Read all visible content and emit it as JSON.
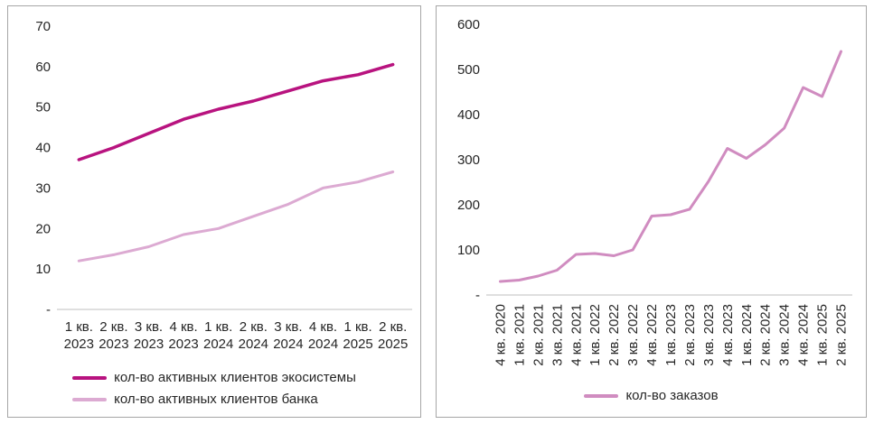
{
  "accent_colors": {
    "ecosystem_line": "#b8137f",
    "bank_line": "#dcaad2",
    "orders_line": "#d08cc0",
    "axis_line": "#bfbfbf"
  },
  "chart_data": [
    {
      "type": "line",
      "title": "",
      "xlabel": "",
      "ylabel": "",
      "ylim": [
        0,
        70
      ],
      "grid": false,
      "legend_position": "bottom",
      "ytick_values": [
        0,
        10,
        20,
        30,
        40,
        50,
        60,
        70
      ],
      "ytick_labels": [
        "-",
        "10",
        "20",
        "30",
        "40",
        "50",
        "60",
        "70"
      ],
      "categories": [
        "1 кв. 2023",
        "2 кв. 2023",
        "3 кв. 2023",
        "4 кв. 2023",
        "1 кв. 2024",
        "2 кв. 2024",
        "3 кв. 2024",
        "4 кв. 2024",
        "1 кв. 2025",
        "2 кв. 2025"
      ],
      "series": [
        {
          "name": "кол-во активных клиентов экосистемы",
          "color": "#b8137f",
          "width": 3.5,
          "values": [
            37,
            40,
            43.5,
            47,
            49.5,
            51.5,
            54,
            56.5,
            58,
            60.5
          ]
        },
        {
          "name": "кол-во активных клиентов банка",
          "color": "#dcaad2",
          "width": 3,
          "values": [
            12,
            13.5,
            15.5,
            18.5,
            20,
            23,
            26,
            30,
            31.5,
            34
          ]
        }
      ]
    },
    {
      "type": "line",
      "title": "",
      "xlabel": "",
      "ylabel": "",
      "ylim": [
        0,
        600
      ],
      "grid": false,
      "legend_position": "bottom",
      "ytick_values": [
        0,
        100,
        200,
        300,
        400,
        500,
        600
      ],
      "ytick_labels": [
        "-",
        "100",
        "200",
        "300",
        "400",
        "500",
        "600"
      ],
      "categories": [
        "4 кв. 2020",
        "1 кв. 2021",
        "2 кв. 2021",
        "3 кв. 2021",
        "4 кв. 2021",
        "1 кв. 2022",
        "2 кв. 2022",
        "3 кв. 2022",
        "4 кв. 2022",
        "1 кв. 2023",
        "2 кв. 2023",
        "3 кв. 2023",
        "4 кв. 2023",
        "1 кв. 2024",
        "2 кв. 2024",
        "3 кв. 2024",
        "4 кв. 2024",
        "1 кв. 2025",
        "2 кв. 2025"
      ],
      "series": [
        {
          "name": "кол-во заказов",
          "color": "#d08cc0",
          "width": 3,
          "values": [
            30,
            33,
            42,
            55,
            90,
            92,
            87,
            100,
            175,
            178,
            190,
            252,
            325,
            303,
            333,
            370,
            460,
            440,
            540
          ]
        }
      ]
    }
  ]
}
